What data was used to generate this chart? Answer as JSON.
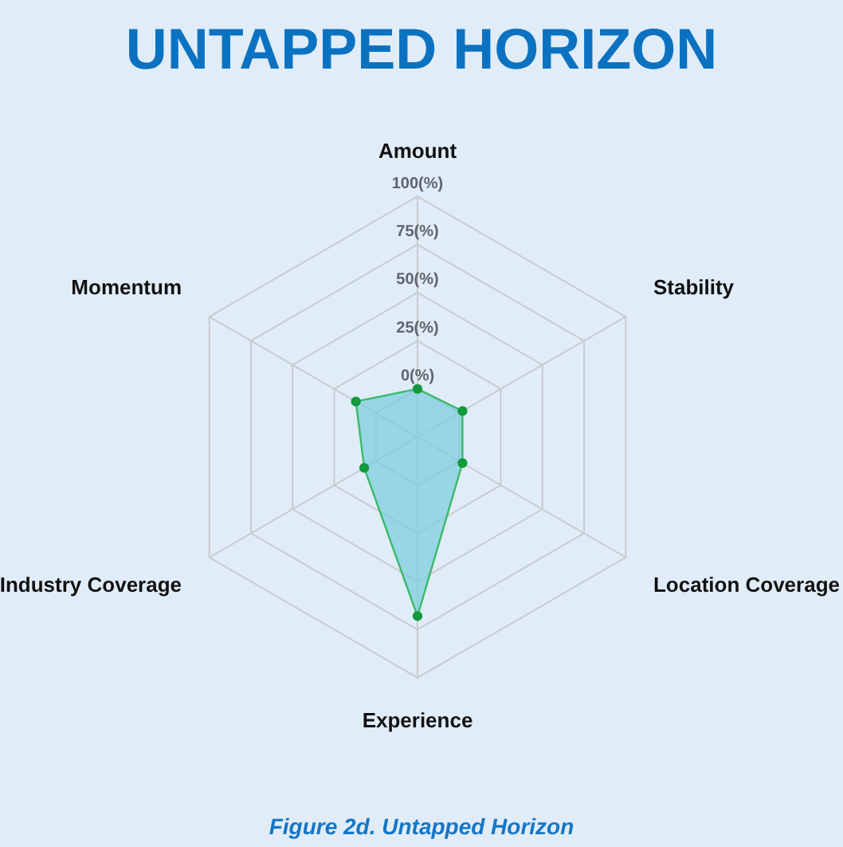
{
  "chart_data": {
    "type": "radar",
    "title": "UNTAPPED HORIZON",
    "annotations": [
      "Figure 2d. Untapped Horizon"
    ],
    "categories": [
      "Amount",
      "Stability",
      "Location Coverage",
      "Experience",
      "Industry Coverage",
      "Momentum"
    ],
    "series": [
      {
        "color": "#3cb96a",
        "values": [
          0,
          2,
          2,
          68,
          7,
          12
        ]
      }
    ],
    "ylim": [
      -25,
      100
    ],
    "yticks": [
      {
        "value": 0,
        "label": "0(%)"
      },
      {
        "value": 25,
        "label": "25(%)"
      },
      {
        "value": 50,
        "label": "50(%)"
      },
      {
        "value": 75,
        "label": "75(%)"
      },
      {
        "value": 100,
        "label": "100(%)"
      }
    ],
    "grid": true,
    "legend": false,
    "marker": "circle"
  }
}
